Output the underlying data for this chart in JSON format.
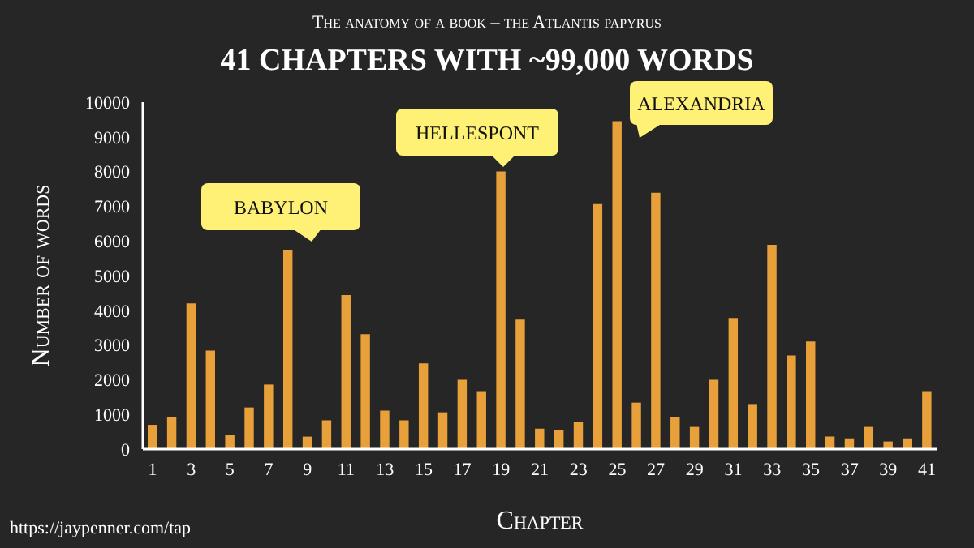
{
  "chart_data": {
    "type": "bar",
    "subtitle": "The anatomy of a book – the Atlantis papyrus",
    "title": "41 CHAPTERS WITH ~99,000 WORDS",
    "xlabel": "Chapter",
    "ylabel": "Number of words",
    "x": [
      1,
      2,
      3,
      4,
      5,
      6,
      7,
      8,
      9,
      10,
      11,
      12,
      13,
      14,
      15,
      16,
      17,
      18,
      19,
      20,
      21,
      22,
      23,
      24,
      25,
      26,
      27,
      28,
      29,
      30,
      31,
      32,
      33,
      34,
      35,
      36,
      37,
      38,
      39,
      40,
      41
    ],
    "values": [
      700,
      920,
      4200,
      2840,
      410,
      1200,
      1860,
      5750,
      360,
      830,
      4440,
      3310,
      1110,
      830,
      2470,
      1060,
      2000,
      1670,
      8000,
      3730,
      590,
      550,
      780,
      7060,
      9450,
      1340,
      7390,
      920,
      640,
      2000,
      3780,
      1300,
      5890,
      2700,
      3100,
      360,
      310,
      640,
      220,
      310,
      1670
    ],
    "color": "#e8a03a",
    "xlim": [
      0.5,
      41.5
    ],
    "xticks": [
      1,
      3,
      5,
      7,
      9,
      11,
      13,
      15,
      17,
      19,
      21,
      23,
      25,
      27,
      29,
      31,
      33,
      35,
      37,
      39,
      41
    ],
    "ylim": [
      0,
      10000
    ],
    "yticks": [
      0,
      1000,
      2000,
      3000,
      4000,
      5000,
      6000,
      7000,
      8000,
      9000,
      10000
    ],
    "grid": false,
    "legend": false,
    "annotations": [
      "BABYLON",
      "HELLESPONT",
      "ALEXANDRIA",
      "https://jaypenner.com/tap"
    ]
  }
}
